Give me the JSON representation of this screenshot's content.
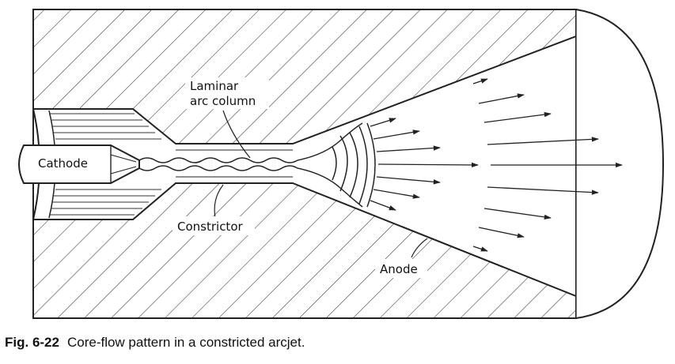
{
  "labels": {
    "laminar_line1": "Laminar",
    "laminar_line2": "arc column",
    "cathode": "Cathode",
    "constrictor": "Constrictor",
    "anode": "Anode"
  },
  "caption": {
    "figure_number": "Fig. 6-22",
    "text": "Core-flow pattern in a constricted arcjet."
  }
}
